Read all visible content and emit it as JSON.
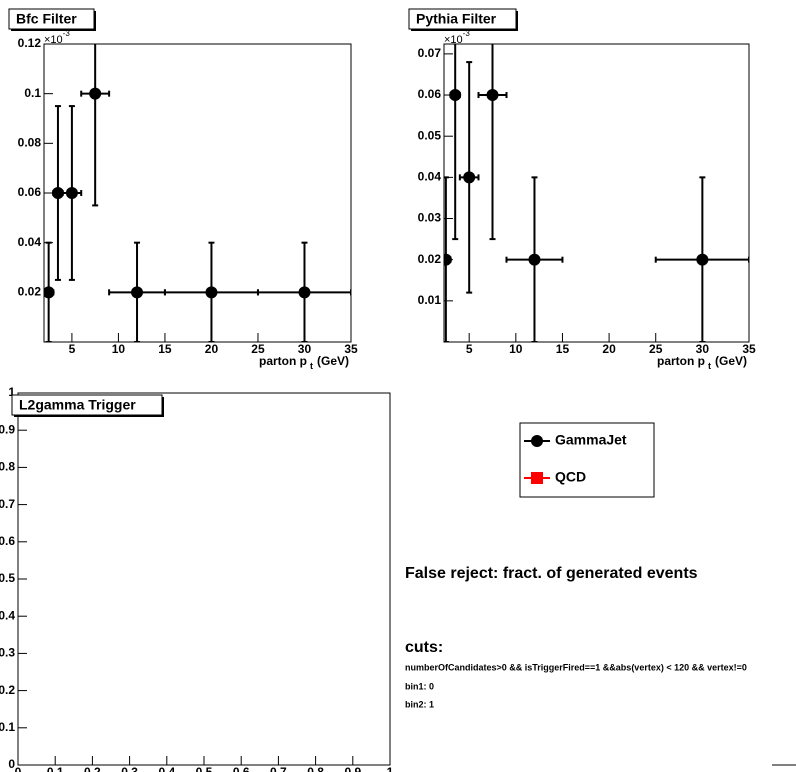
{
  "chart_data": [
    {
      "type": "scatter",
      "title": "Bfc Filter",
      "x": [
        2.5,
        3.5,
        5,
        7.5,
        12,
        20,
        30
      ],
      "xerr": [
        0.5,
        0.5,
        1,
        1.5,
        3,
        5,
        5
      ],
      "values": [
        0.02,
        0.06,
        0.06,
        0.1,
        0.02,
        0.02,
        0.02
      ],
      "yerr": [
        0.02,
        0.035,
        0.035,
        0.045,
        0.02,
        0.02,
        0.02
      ],
      "color": "#000000",
      "xlim": [
        2,
        35
      ],
      "ylim": [
        0,
        0.12
      ],
      "xticks": [
        5,
        10,
        15,
        20,
        25,
        30,
        35
      ],
      "yticks": [
        0.02,
        0.04,
        0.06,
        0.08,
        0.1,
        0.12
      ],
      "y_exponent": {
        "base": "×10",
        "power": "-3"
      },
      "xlabel": {
        "text": "parton p",
        "sub": "t",
        "unit": "(GeV)"
      }
    },
    {
      "type": "scatter",
      "title": "Pythia Filter",
      "x": [
        2.5,
        3.5,
        5,
        7.5,
        12,
        30
      ],
      "xerr": [
        0.5,
        0.5,
        1,
        1.5,
        3,
        5
      ],
      "values": [
        0.02,
        0.06,
        0.04,
        0.06,
        0.02,
        0.02
      ],
      "yerr": [
        0.02,
        0.035,
        0.028,
        0.035,
        0.02,
        0.02
      ],
      "color": "#000000",
      "xlim": [
        2.3,
        35
      ],
      "ylim": [
        0,
        0.0724
      ],
      "xticks": [
        5,
        10,
        15,
        20,
        25,
        30,
        35
      ],
      "yticks": [
        0.01,
        0.02,
        0.03,
        0.04,
        0.05,
        0.06,
        0.07
      ],
      "y_exponent": {
        "base": "×10",
        "power": "-3"
      },
      "xlabel": {
        "text": "parton p",
        "sub": "t",
        "unit": "(GeV)"
      }
    },
    {
      "type": "scatter",
      "title": "L2gamma Trigger",
      "x": [],
      "values": [],
      "xlim": [
        0,
        1
      ],
      "ylim": [
        0,
        1
      ],
      "xticks": [
        0,
        0.1,
        0.2,
        0.3,
        0.4,
        0.5,
        0.6,
        0.7,
        0.8,
        0.9,
        1
      ],
      "yticks": [
        0,
        0.1,
        0.2,
        0.3,
        0.4,
        0.5,
        0.6,
        0.7,
        0.8,
        0.9,
        1
      ],
      "series": [
        {
          "name": "GammaJet",
          "color": "#000000",
          "marker": "circle"
        },
        {
          "name": "QCD",
          "color": "#ff0000",
          "marker": "square"
        }
      ]
    }
  ],
  "notes": {
    "heading": "False reject: fract. of generated events",
    "cuts_label": "cuts:",
    "cuts": "numberOfCandidates>0 && isTriggerFired==1 &&abs(vertex) < 120 && vertex!=0",
    "bins": [
      "bin1: 0",
      "bin2: 1"
    ]
  }
}
